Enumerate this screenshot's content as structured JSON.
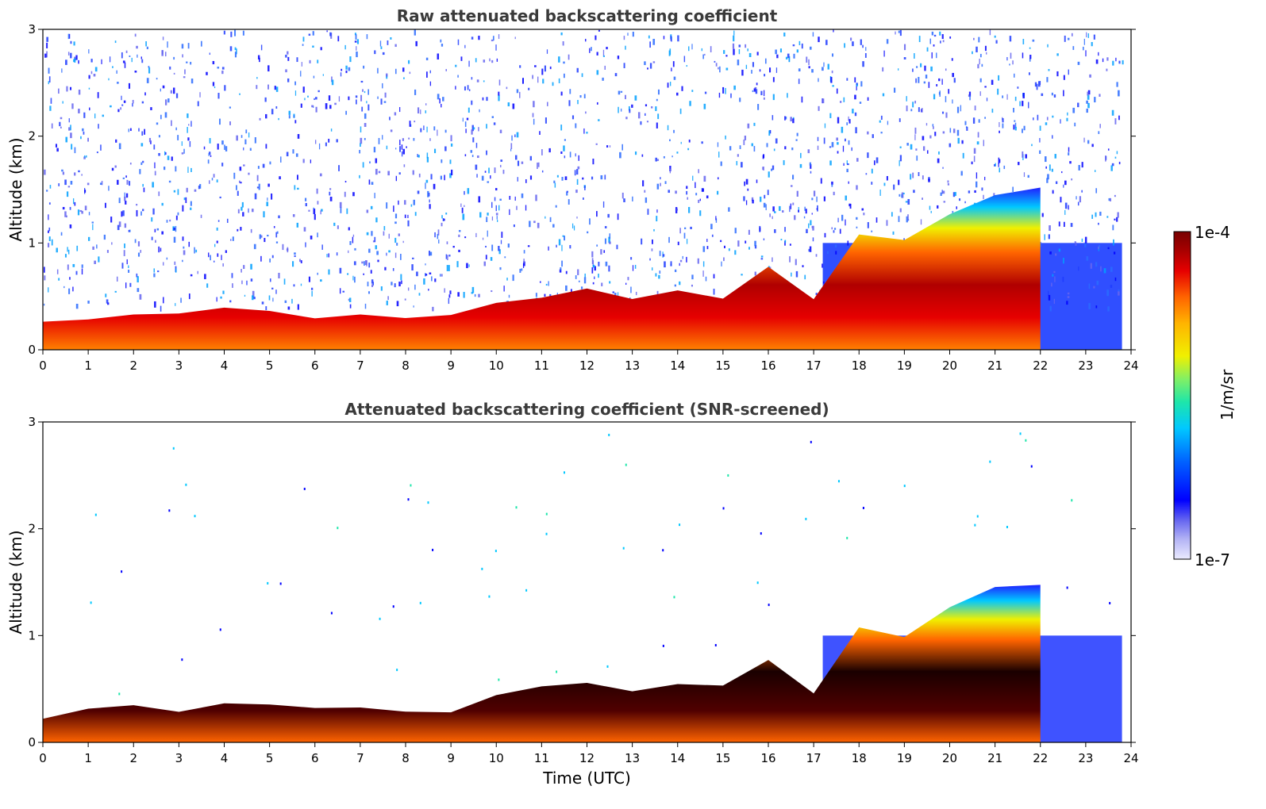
{
  "chart_data": [
    {
      "type": "heatmap",
      "title": "Raw attenuated backscattering coefficient",
      "xlabel": "",
      "ylabel": "Altitude (km)",
      "xlim": [
        0,
        24
      ],
      "ylim": [
        0,
        3
      ],
      "x_ticks": [
        0,
        1,
        2,
        3,
        4,
        5,
        6,
        7,
        8,
        9,
        10,
        11,
        12,
        13,
        14,
        15,
        16,
        17,
        18,
        19,
        20,
        21,
        22,
        23,
        24
      ],
      "y_ticks": [
        0,
        1,
        2,
        3
      ],
      "grid": false,
      "layer_top_km": {
        "time_utc": [
          0,
          1,
          2,
          3,
          4,
          5,
          6,
          7,
          8,
          9,
          10,
          11,
          12,
          13,
          14,
          15,
          16,
          17,
          18,
          19,
          20,
          21,
          22
        ],
        "altitude_km": [
          0.25,
          0.3,
          0.32,
          0.3,
          0.38,
          0.35,
          0.32,
          0.3,
          0.28,
          0.3,
          0.42,
          0.5,
          0.55,
          0.5,
          0.55,
          0.5,
          0.8,
          0.45,
          1.05,
          1.0,
          1.3,
          1.45,
          1.5
        ]
      }
    },
    {
      "type": "heatmap",
      "title": "Attenuated backscattering coefficient (SNR-screened)",
      "xlabel": "Time (UTC)",
      "ylabel": "Altitude (km)",
      "xlim": [
        0,
        24
      ],
      "ylim": [
        0,
        3
      ],
      "x_ticks": [
        0,
        1,
        2,
        3,
        4,
        5,
        6,
        7,
        8,
        9,
        10,
        11,
        12,
        13,
        14,
        15,
        16,
        17,
        18,
        19,
        20,
        21,
        22,
        23,
        24
      ],
      "y_ticks": [
        0,
        1,
        2,
        3
      ],
      "grid": false,
      "layer_top_km": {
        "time_utc": [
          0,
          1,
          2,
          3,
          4,
          5,
          6,
          7,
          8,
          9,
          10,
          11,
          12,
          13,
          14,
          15,
          16,
          17,
          18,
          19,
          20,
          21,
          22
        ],
        "altitude_km": [
          0.25,
          0.3,
          0.32,
          0.3,
          0.38,
          0.35,
          0.32,
          0.3,
          0.28,
          0.3,
          0.42,
          0.5,
          0.55,
          0.5,
          0.55,
          0.5,
          0.8,
          0.45,
          1.05,
          1.0,
          1.3,
          1.45,
          1.5
        ]
      }
    }
  ],
  "colorbar": {
    "label": "1/m/sr",
    "min_label": "1e-7",
    "max_label": "1e-4",
    "scale": "log",
    "colormap": [
      "#ebebff",
      "#b4b4f5",
      "#6464f0",
      "#0000ff",
      "#0064ff",
      "#00c8ff",
      "#1ee6aa",
      "#82f064",
      "#f0f000",
      "#ffb400",
      "#ff6400",
      "#e60000",
      "#a00000",
      "#780000"
    ]
  }
}
